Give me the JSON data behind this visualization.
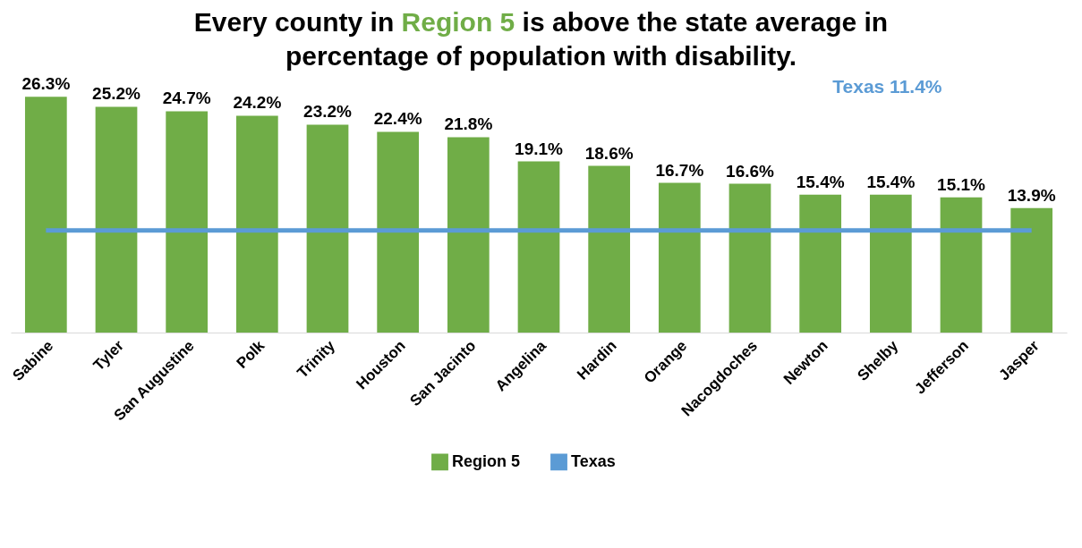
{
  "chart_data": {
    "type": "bar",
    "title": "Every county in Region 5 is above the state average in percentage of population with disability.",
    "categories": [
      "Sabine",
      "Tyler",
      "San Augustine",
      "Polk",
      "Trinity",
      "Houston",
      "San Jacinto",
      "Angelina",
      "Hardin",
      "Orange",
      "Nacogdoches",
      "Newton",
      "Shelby",
      "Jefferson",
      "Jasper"
    ],
    "series": [
      {
        "name": "Region 5",
        "color": "#70ad47",
        "values": [
          26.3,
          25.2,
          24.7,
          24.2,
          23.2,
          22.4,
          21.8,
          19.1,
          18.6,
          16.7,
          16.6,
          15.4,
          15.4,
          15.1,
          13.9
        ],
        "value_labels": [
          "26.3%",
          "25.2%",
          "24.7%",
          "24.2%",
          "23.2%",
          "22.4%",
          "21.8%",
          "19.1%",
          "18.6%",
          "16.7%",
          "16.6%",
          "15.4%",
          "15.4%",
          "15.1%",
          "13.9%"
        ]
      },
      {
        "name": "Texas",
        "type": "line",
        "color": "#5b9bd5",
        "values": [
          11.4,
          11.4,
          11.4,
          11.4,
          11.4,
          11.4,
          11.4,
          11.4,
          11.4,
          11.4,
          11.4,
          11.4,
          11.4,
          11.4,
          11.4
        ]
      }
    ],
    "annotations": [
      "Texas 11.4%"
    ],
    "legend": "bottom",
    "tick_labels": "x"
  }
}
